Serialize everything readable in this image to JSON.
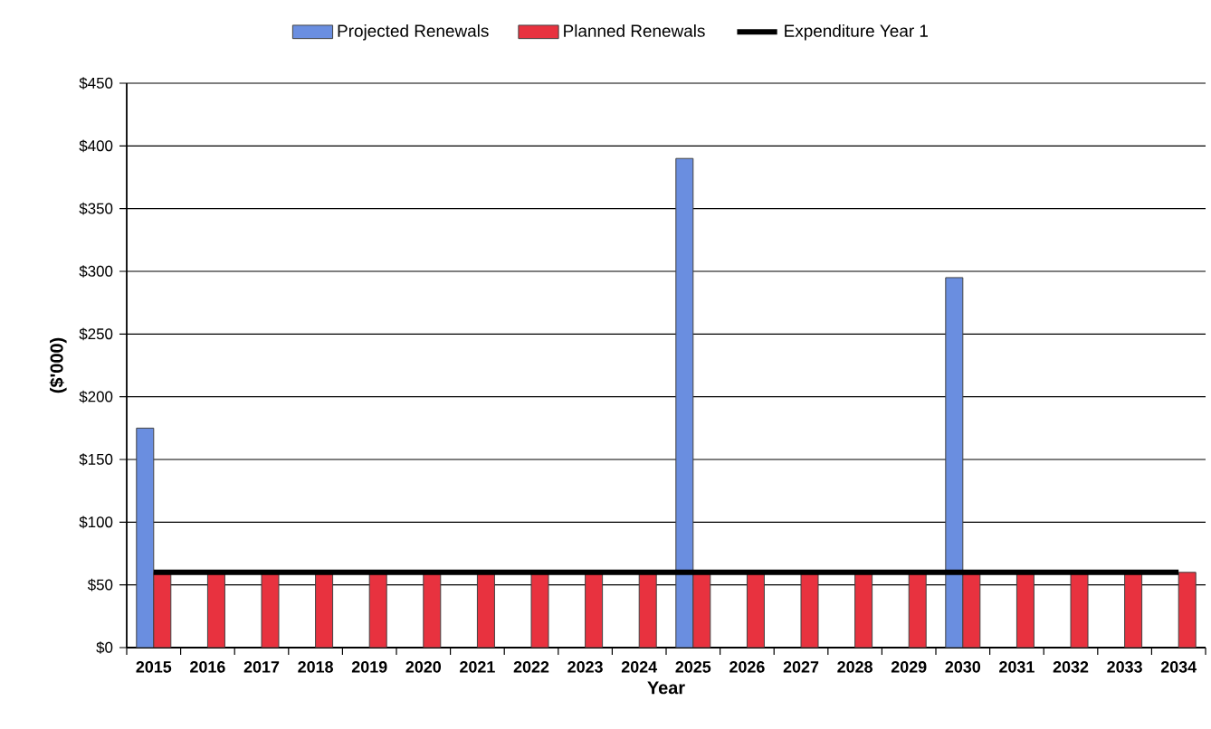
{
  "chart_data": {
    "type": "bar",
    "categories": [
      "2015",
      "2016",
      "2017",
      "2018",
      "2019",
      "2020",
      "2021",
      "2022",
      "2023",
      "2024",
      "2025",
      "2026",
      "2027",
      "2028",
      "2029",
      "2030",
      "2031",
      "2032",
      "2033",
      "2034"
    ],
    "series": [
      {
        "name": "Projected Renewals",
        "color": "#6a8ee0",
        "values": [
          175,
          null,
          null,
          null,
          null,
          null,
          null,
          null,
          null,
          null,
          390,
          null,
          null,
          null,
          null,
          295,
          null,
          null,
          null,
          null
        ]
      },
      {
        "name": "Planned Renewals",
        "color": "#e8323f",
        "values": [
          60,
          60,
          60,
          60,
          60,
          60,
          60,
          60,
          60,
          60,
          60,
          60,
          60,
          60,
          60,
          60,
          60,
          60,
          60,
          60
        ]
      },
      {
        "name": "Expenditure Year 1",
        "type": "line",
        "color": "#000000",
        "values": [
          60,
          60,
          60,
          60,
          60,
          60,
          60,
          60,
          60,
          60,
          60,
          60,
          60,
          60,
          60,
          60,
          60,
          60,
          60,
          60
        ]
      }
    ],
    "xlabel": "Year",
    "ylabel": "($'000)",
    "ylim": [
      0,
      450
    ],
    "yticks": [
      {
        "value": 0,
        "label": "$0"
      },
      {
        "value": 50,
        "label": "$50"
      },
      {
        "value": 100,
        "label": "$100"
      },
      {
        "value": 150,
        "label": "$150"
      },
      {
        "value": 200,
        "label": "$200"
      },
      {
        "value": 250,
        "label": "$250"
      },
      {
        "value": 300,
        "label": "$300"
      },
      {
        "value": 350,
        "label": "$350"
      },
      {
        "value": 400,
        "label": "$400"
      },
      {
        "value": 450,
        "label": "$450"
      }
    ],
    "grid": "y",
    "legend": "top"
  }
}
